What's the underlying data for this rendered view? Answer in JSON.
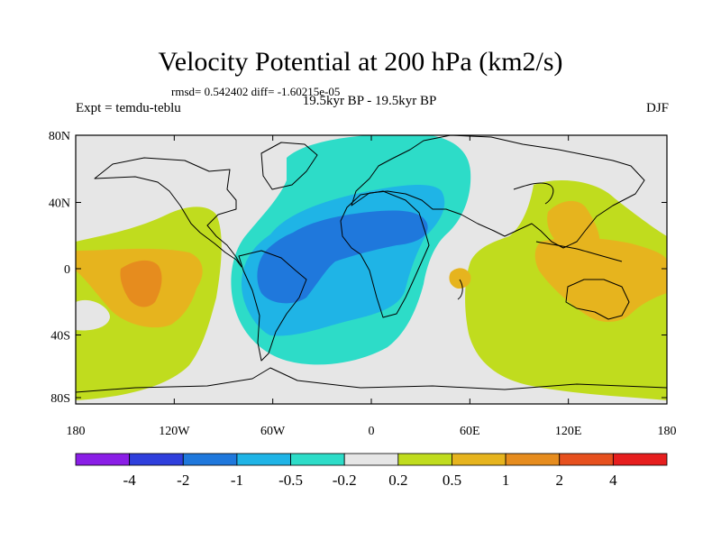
{
  "title": "Velocity Potential at 200 hPa (km2/s)",
  "stats": "rmsd= 0.542402 diff= -1.60215e-05",
  "experiment": "Expt = temdu-teblu",
  "period": "19.5kyr BP - 19.5kyr BP",
  "season": "DJF",
  "lat_ticks": [
    "80N",
    "40N",
    "0",
    "40S",
    "80S"
  ],
  "lon_ticks": [
    "180",
    "120W",
    "60W",
    "0",
    "60E",
    "120E",
    "180"
  ],
  "colorbar": {
    "colors": [
      "#8a1ee6",
      "#2f3fdc",
      "#1f78dc",
      "#1fb4e6",
      "#2ddcc8",
      "#e6e6e6",
      "#c0dc1e",
      "#e6b41e",
      "#e68c1e",
      "#e6501e",
      "#e61e1e"
    ],
    "labels": [
      "-4",
      "-2",
      "-1",
      "-0.5",
      "-0.2",
      "0.2",
      "0.5",
      "1",
      "2",
      "4"
    ]
  },
  "field_colors": {
    "ocean_neutral": "#e6e6e6",
    "cyan": "#2ddcc8",
    "light_blue": "#1fb4e6",
    "blue": "#1f78dc",
    "yellow_green": "#c0dc1e",
    "gold": "#e6b41e",
    "orange": "#e68c1e"
  }
}
